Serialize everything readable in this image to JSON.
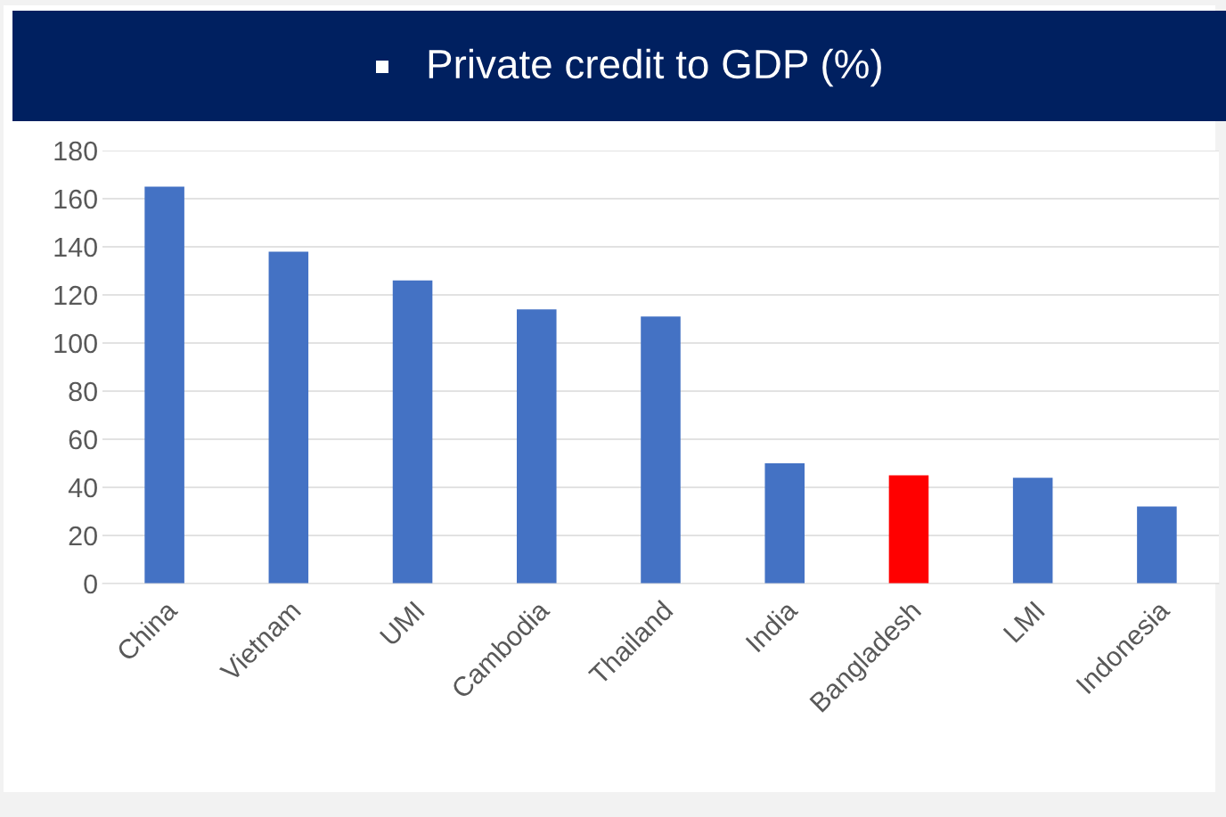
{
  "chart_data": {
    "type": "bar",
    "title": "Private credit to GDP (%)",
    "categories": [
      "China",
      "Vietnam",
      "UMI",
      "Cambodia",
      "Thailand",
      "India",
      "Bangladesh",
      "LMI",
      "Indonesia"
    ],
    "values": [
      165,
      138,
      126,
      114,
      111,
      50,
      45,
      44,
      32
    ],
    "colors": [
      "#4472c4",
      "#4472c4",
      "#4472c4",
      "#4472c4",
      "#4472c4",
      "#4472c4",
      "#ff0000",
      "#4472c4",
      "#4472c4"
    ],
    "ylim": [
      0,
      180
    ],
    "yticks": [
      0,
      20,
      40,
      60,
      80,
      100,
      120,
      140,
      160,
      180
    ],
    "grid": "y",
    "legend": false
  }
}
